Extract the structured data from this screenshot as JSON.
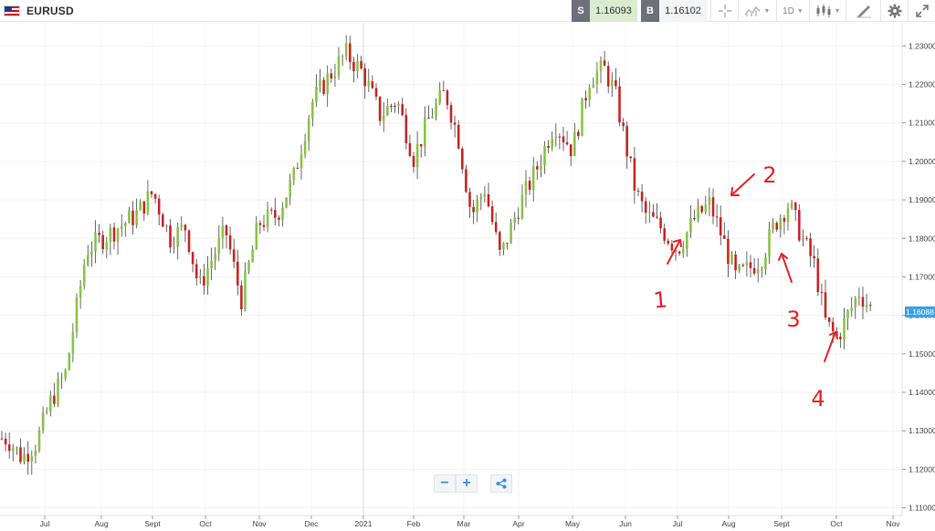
{
  "header": {
    "symbol": "EURUSD",
    "sell": {
      "label": "S",
      "value": "1.16093"
    },
    "buy": {
      "label": "B",
      "value": "1.16102"
    },
    "timeframe": "1D"
  },
  "chart_data": {
    "type": "candlestick",
    "x_labels": [
      "Jul",
      "Aug",
      "Sept",
      "Oct",
      "Nov",
      "Dec",
      "2021",
      "Feb",
      "Mar",
      "Apr",
      "May",
      "Jun",
      "Jul",
      "Aug",
      "Sept",
      "Oct",
      "Nov"
    ],
    "y_ticks": [
      "1.23000",
      "1.22000",
      "1.21000",
      "1.20000",
      "1.19000",
      "1.18000",
      "1.17000",
      "1.16000",
      "1.15000",
      "1.14000",
      "1.13000",
      "1.12000",
      "1.11000"
    ],
    "ylim": [
      1.108,
      1.236
    ],
    "current_price": "1.16088",
    "colors": {
      "up": "#8bc34a",
      "down": "#c62828",
      "price_tag": "#3f9fe0",
      "annotation": "#e0252c"
    },
    "annotations": [
      "1",
      "2",
      "3",
      "4"
    ],
    "series": [
      {
        "name": "EURUSD daily",
        "close_path": [
          [
            "Jul",
            1.128
          ],
          [
            "Jul",
            1.123
          ],
          [
            "Jul",
            1.127
          ],
          [
            "Jul",
            1.138
          ],
          [
            "Jul",
            1.145
          ],
          [
            "Aug",
            1.177
          ],
          [
            "Aug",
            1.182
          ],
          [
            "Sept",
            1.186
          ],
          [
            "Sept",
            1.192
          ],
          [
            "Sept",
            1.18
          ],
          [
            "Oct",
            1.183
          ],
          [
            "Oct",
            1.167
          ],
          [
            "Oct",
            1.175
          ],
          [
            "Oct",
            1.182
          ],
          [
            "Nov",
            1.164
          ],
          [
            "Nov",
            1.184
          ],
          [
            "Nov",
            1.186
          ],
          [
            "Dec",
            1.196
          ],
          [
            "Dec",
            1.215
          ],
          [
            "Dec",
            1.222
          ],
          [
            "2021",
            1.228
          ],
          [
            "2021",
            1.223
          ],
          [
            "2021",
            1.212
          ],
          [
            "Feb",
            1.216
          ],
          [
            "Feb",
            1.201
          ],
          [
            "Feb",
            1.212
          ],
          [
            "Mar",
            1.218
          ],
          [
            "Mar",
            1.206
          ],
          [
            "Mar",
            1.186
          ],
          [
            "Mar",
            1.193
          ],
          [
            "Apr",
            1.175
          ],
          [
            "Apr",
            1.188
          ],
          [
            "Apr",
            1.198
          ],
          [
            "May",
            1.21
          ],
          [
            "May",
            1.203
          ],
          [
            "May",
            1.222
          ],
          [
            "Jun",
            1.224
          ],
          [
            "Jun",
            1.218
          ],
          [
            "Jun",
            1.205
          ],
          [
            "Jun",
            1.192
          ],
          [
            "Jun",
            1.186
          ],
          [
            "Jul",
            1.183
          ],
          [
            "Jul",
            1.177
          ],
          [
            "Jul",
            1.185
          ],
          [
            "Aug",
            1.189
          ],
          [
            "Aug",
            1.18
          ],
          [
            "Aug",
            1.17
          ],
          [
            "Aug",
            1.172
          ],
          [
            "Sept",
            1.175
          ],
          [
            "Sept",
            1.184
          ],
          [
            "Sept",
            1.189
          ],
          [
            "Sept",
            1.18
          ],
          [
            "Oct",
            1.173
          ],
          [
            "Oct",
            1.158
          ],
          [
            "Oct",
            1.154
          ],
          [
            "Oct",
            1.16
          ],
          [
            "Oct",
            1.166
          ],
          [
            "Nov",
            1.161
          ]
        ]
      }
    ]
  }
}
